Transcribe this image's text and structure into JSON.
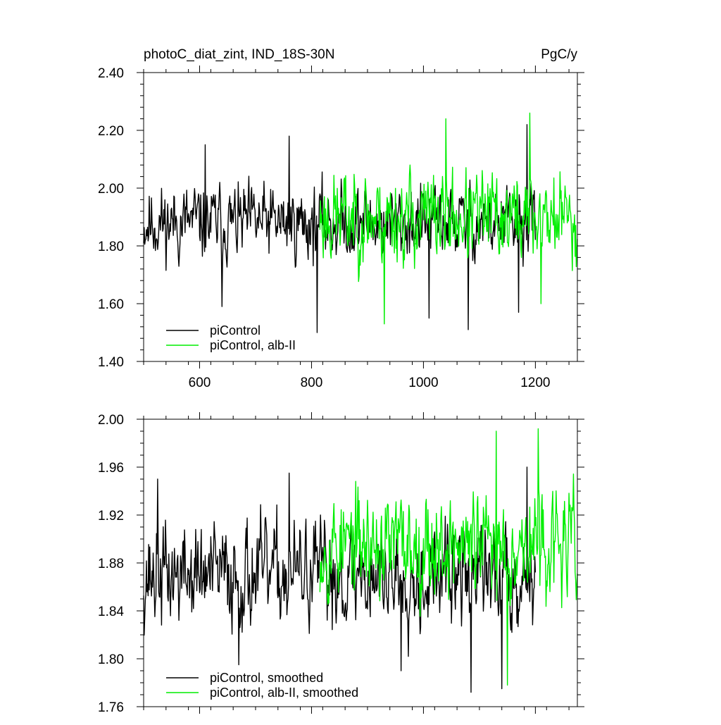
{
  "chart_data": [
    {
      "type": "line",
      "title_left": "photoC_diat_zint, IND_18S-30N",
      "title_right": "PgC/y",
      "xlim": [
        500,
        1275
      ],
      "ylim": [
        1.4,
        2.4
      ],
      "x_ticks": [
        600,
        800,
        1000,
        1200
      ],
      "x_tick_labels": [
        "600",
        "800",
        "1000",
        "1200"
      ],
      "y_ticks": [
        1.4,
        1.6,
        1.8,
        2.0,
        2.2,
        2.4
      ],
      "y_tick_labels": [
        "1.40",
        "1.60",
        "1.80",
        "2.00",
        "2.20",
        "2.40"
      ],
      "legend_position": "bottom-left",
      "series": [
        {
          "name": "piControl",
          "color": "#000000",
          "x_start": 500,
          "x_end": 1200,
          "mean": 1.88,
          "amplitude": 0.09,
          "seed": 11,
          "spikes": [
            [
              610,
              2.15
            ],
            [
              640,
              1.59
            ],
            [
              760,
              2.18
            ],
            [
              810,
              1.5
            ],
            [
              1010,
              1.55
            ],
            [
              1080,
              1.51
            ],
            [
              1170,
              1.57
            ],
            [
              1185,
              2.22
            ]
          ]
        },
        {
          "name": "piControl, alb-II",
          "color": "#00ee00",
          "x_start": 815,
          "x_end": 1275,
          "mean": 1.9,
          "amplitude": 0.11,
          "seed": 23,
          "spikes": [
            [
              930,
              1.53
            ],
            [
              1040,
              2.24
            ],
            [
              1190,
              2.26
            ],
            [
              1210,
              1.6
            ]
          ]
        }
      ]
    },
    {
      "type": "line",
      "xlim": [
        500,
        1275
      ],
      "ylim": [
        1.76,
        2.0
      ],
      "x_ticks": [
        600,
        800,
        1000,
        1200
      ],
      "y_ticks": [
        1.76,
        1.8,
        1.84,
        1.88,
        1.92,
        1.96,
        2.0
      ],
      "y_tick_labels": [
        "1.76",
        "1.80",
        "1.84",
        "1.88",
        "1.92",
        "1.96",
        "2.00"
      ],
      "legend_position": "bottom-left",
      "series": [
        {
          "name": "piControl, smoothed",
          "color": "#000000",
          "x_start": 500,
          "x_end": 1200,
          "mean": 1.87,
          "amplitude": 0.03,
          "seed": 37,
          "spikes": [
            [
              525,
              1.95
            ],
            [
              670,
              1.795
            ],
            [
              760,
              1.955
            ],
            [
              960,
              1.79
            ],
            [
              1085,
              1.772
            ],
            [
              1140,
              1.775
            ],
            [
              1185,
              1.96
            ]
          ]
        },
        {
          "name": "piControl, alb-II, smoothed",
          "color": "#00ee00",
          "x_start": 815,
          "x_end": 1275,
          "mean": 1.895,
          "amplitude": 0.03,
          "seed": 53,
          "spikes": [
            [
              1130,
              1.99
            ],
            [
              1150,
              1.778
            ],
            [
              1205,
              1.992
            ]
          ]
        }
      ]
    }
  ]
}
